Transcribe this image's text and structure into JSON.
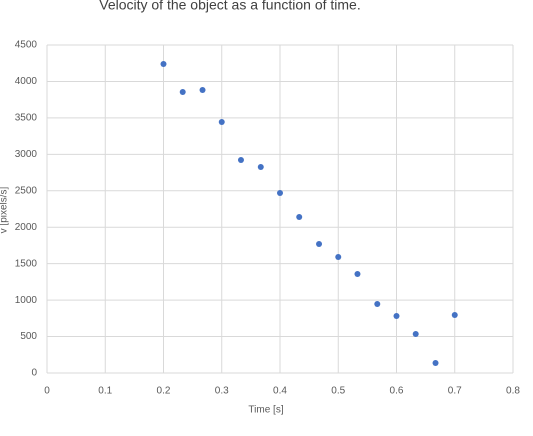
{
  "chart_data": {
    "type": "scatter",
    "title": "Velocity of the object as a function of time.",
    "xlabel": "Time [s]",
    "ylabel": "v [pixels/s]",
    "x": [
      0.2,
      0.233,
      0.267,
      0.3,
      0.333,
      0.367,
      0.4,
      0.433,
      0.467,
      0.5,
      0.533,
      0.567,
      0.6,
      0.633,
      0.667,
      0.7
    ],
    "series": [
      {
        "name": "v",
        "color": "#4472c4",
        "values": [
          4240,
          3855,
          3883,
          3444,
          2922,
          2826,
          2470,
          2140,
          1770,
          1592,
          1358,
          947,
          782,
          535,
          137,
          796
        ]
      }
    ],
    "xlim": [
      0,
      0.8
    ],
    "xticks": [
      0,
      0.1,
      0.2,
      0.3,
      0.4,
      0.5,
      0.6,
      0.7,
      0.8
    ],
    "ylim": [
      0,
      4500
    ],
    "yticks": [
      0,
      500,
      1000,
      1500,
      2000,
      2500,
      3000,
      3500,
      4000,
      4500
    ],
    "grid": true
  }
}
